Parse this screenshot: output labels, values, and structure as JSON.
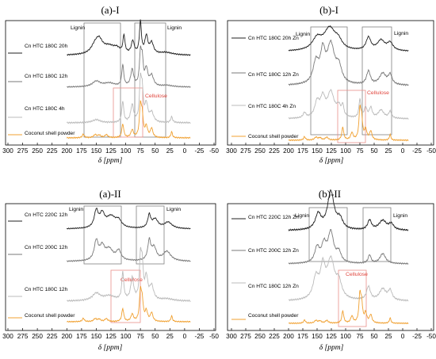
{
  "chart_data": [
    {
      "type": "line",
      "title": "(a)-I",
      "xlabel": "δ [ppm]",
      "xlim": [
        300,
        -50
      ],
      "x_ticks": [
        "300",
        "275",
        "250",
        "225",
        "200",
        "175",
        "150",
        "125",
        "100",
        "75",
        "50",
        "25",
        "0",
        "-25",
        "-50"
      ],
      "regions": [
        {
          "label": "Lignin",
          "from": 160,
          "to": 100,
          "color": "#808080"
        },
        {
          "label": "Lignin",
          "from": 68,
          "to": 10,
          "color": "#808080"
        },
        {
          "label": "Cellulose",
          "from": 112,
          "to": 58,
          "color": "#e8908a"
        }
      ],
      "series": [
        {
          "name": "Cn HTC 180C 20h",
          "color": "#222222",
          "peaks": [
            [
              152,
              0.25,
              8
            ],
            [
              145,
              0.35,
              7
            ],
            [
              128,
              0.25,
              14
            ],
            [
              115,
              0.12,
              6
            ],
            [
              103,
              0.55,
              2
            ],
            [
              88,
              0.4,
              3
            ],
            [
              75,
              1.0,
              2
            ],
            [
              65,
              0.55,
              3
            ],
            [
              56,
              0.35,
              4
            ],
            [
              32,
              0.08,
              15
            ]
          ]
        },
        {
          "name": "Cn HTC 180C 12h",
          "color": "#7a7a7a",
          "peaks": [
            [
              150,
              0.18,
              8
            ],
            [
              128,
              0.12,
              12
            ],
            [
              105,
              0.7,
              2
            ],
            [
              89,
              0.55,
              3
            ],
            [
              75,
              1.0,
              2
            ],
            [
              72,
              0.8,
              2
            ],
            [
              65,
              0.55,
              3
            ],
            [
              56,
              0.35,
              4
            ],
            [
              30,
              0.05,
              12
            ]
          ]
        },
        {
          "name": "Cn HTC 180C 4h",
          "color": "#bbbbbb",
          "peaks": [
            [
              150,
              0.08,
              8
            ],
            [
              105,
              0.55,
              2
            ],
            [
              89,
              0.45,
              3
            ],
            [
              75,
              1.0,
              2
            ],
            [
              72,
              0.75,
              2
            ],
            [
              65,
              0.45,
              3
            ],
            [
              56,
              0.25,
              4
            ],
            [
              22,
              0.15,
              2
            ]
          ]
        },
        {
          "name": "Coconut shell powder",
          "color": "#f0a030",
          "peaks": [
            [
              172,
              0.12,
              2
            ],
            [
              152,
              0.1,
              3
            ],
            [
              145,
              0.08,
              3
            ],
            [
              133,
              0.1,
              3
            ],
            [
              105,
              0.45,
              2
            ],
            [
              89,
              0.25,
              2.5
            ],
            [
              75,
              1.0,
              2
            ],
            [
              72,
              0.65,
              2
            ],
            [
              65,
              0.35,
              2.5
            ],
            [
              56,
              0.3,
              2.5
            ],
            [
              22,
              0.2,
              1.6
            ]
          ]
        }
      ]
    },
    {
      "type": "line",
      "title": "(b)-I",
      "xlabel": "δ [ppm]",
      "xlim": [
        300,
        -50
      ],
      "x_ticks": [
        "300",
        "275",
        "250",
        "225",
        "200",
        "175",
        "150",
        "125",
        "100",
        "75",
        "50",
        "25",
        "0",
        "-25",
        "-50"
      ],
      "regions": [
        {
          "label": "Lignin",
          "from": 160,
          "to": 100,
          "color": "#808080"
        },
        {
          "label": "Lignin",
          "from": 68,
          "to": 10,
          "color": "#808080"
        },
        {
          "label": "Cellulose",
          "from": 112,
          "to": 58,
          "color": "#e8908a"
        }
      ],
      "series": [
        {
          "name": "Cn HTC 180C 20h Zn",
          "color": "#222222",
          "peaks": [
            [
              150,
              0.45,
              10
            ],
            [
              128,
              0.85,
              12
            ],
            [
              113,
              0.3,
              8
            ],
            [
              60,
              0.5,
              5
            ],
            [
              38,
              0.4,
              8
            ],
            [
              22,
              0.3,
              6
            ]
          ]
        },
        {
          "name": "Cn HTC 180C 12h Zn",
          "color": "#7a7a7a",
          "peaks": [
            [
              152,
              0.55,
              6
            ],
            [
              140,
              0.75,
              5
            ],
            [
              126,
              1.0,
              8
            ],
            [
              112,
              0.4,
              6
            ],
            [
              60,
              0.35,
              4
            ],
            [
              35,
              0.3,
              7
            ],
            [
              22,
              0.25,
              4
            ]
          ]
        },
        {
          "name": "Cn HTC 180C 4h Zn",
          "color": "#bbbbbb",
          "peaks": [
            [
              172,
              0.15,
              3
            ],
            [
              150,
              0.45,
              5
            ],
            [
              140,
              0.55,
              5
            ],
            [
              126,
              0.75,
              7
            ],
            [
              112,
              0.3,
              5
            ],
            [
              105,
              0.3,
              2
            ],
            [
              75,
              0.55,
              2
            ],
            [
              65,
              0.3,
              3
            ],
            [
              56,
              0.3,
              3
            ],
            [
              38,
              0.25,
              6
            ],
            [
              22,
              0.2,
              3
            ]
          ]
        },
        {
          "name": "Coconut shell powder",
          "color": "#f0a030",
          "peaks": [
            [
              172,
              0.12,
              2
            ],
            [
              152,
              0.1,
              3
            ],
            [
              145,
              0.08,
              3
            ],
            [
              133,
              0.1,
              3
            ],
            [
              105,
              0.45,
              2
            ],
            [
              89,
              0.25,
              2.5
            ],
            [
              75,
              1.0,
              2
            ],
            [
              72,
              0.65,
              2
            ],
            [
              65,
              0.35,
              2.5
            ],
            [
              56,
              0.3,
              2.5
            ],
            [
              22,
              0.2,
              1.6
            ]
          ]
        }
      ]
    },
    {
      "type": "line",
      "title": "(a)-II",
      "xlabel": "δ [ppm]",
      "xlim": [
        300,
        -50
      ],
      "x_ticks": [
        "300",
        "275",
        "250",
        "225",
        "200",
        "175",
        "150",
        "125",
        "100",
        "75",
        "50",
        "25",
        "0",
        "-25",
        "-50"
      ],
      "regions": [
        {
          "label": "Lignin",
          "from": 160,
          "to": 100,
          "color": "#808080"
        },
        {
          "label": "Lignin",
          "from": 68,
          "to": 10,
          "color": "#808080"
        },
        {
          "label": "Cellulose",
          "from": 112,
          "to": 58,
          "color": "#e8908a"
        }
      ],
      "series": [
        {
          "name": "Cn HTC 220C 12h",
          "color": "#222222",
          "peaks": [
            [
              150,
              0.65,
              4
            ],
            [
              140,
              0.5,
              5
            ],
            [
              125,
              0.45,
              10
            ],
            [
              112,
              0.25,
              6
            ],
            [
              60,
              0.5,
              3
            ],
            [
              50,
              0.35,
              6
            ],
            [
              28,
              0.25,
              8
            ]
          ]
        },
        {
          "name": "Cn HTC 200C 12h",
          "color": "#7a7a7a",
          "peaks": [
            [
              150,
              0.6,
              4
            ],
            [
              140,
              0.4,
              5
            ],
            [
              128,
              0.35,
              8
            ],
            [
              112,
              0.3,
              5
            ],
            [
              60,
              0.6,
              3
            ],
            [
              52,
              0.4,
              5
            ],
            [
              30,
              0.3,
              8
            ]
          ]
        },
        {
          "name": "Cn HTC 180C 12h",
          "color": "#bbbbbb",
          "peaks": [
            [
              150,
              0.18,
              8
            ],
            [
              128,
              0.12,
              12
            ],
            [
              105,
              0.7,
              2
            ],
            [
              89,
              0.55,
              3
            ],
            [
              75,
              1.0,
              2
            ],
            [
              72,
              0.8,
              2
            ],
            [
              65,
              0.55,
              3
            ],
            [
              56,
              0.35,
              4
            ],
            [
              30,
              0.05,
              12
            ]
          ]
        },
        {
          "name": "Coconut shell powder",
          "color": "#f0a030",
          "peaks": [
            [
              172,
              0.12,
              2
            ],
            [
              152,
              0.1,
              3
            ],
            [
              145,
              0.08,
              3
            ],
            [
              133,
              0.1,
              3
            ],
            [
              105,
              0.45,
              2
            ],
            [
              89,
              0.25,
              2.5
            ],
            [
              75,
              1.0,
              2
            ],
            [
              72,
              0.65,
              2
            ],
            [
              65,
              0.35,
              2.5
            ],
            [
              56,
              0.3,
              2.5
            ],
            [
              22,
              0.2,
              1.6
            ]
          ]
        }
      ]
    },
    {
      "type": "line",
      "title": "(b)-II",
      "xlabel": "δ [ppm]",
      "xlim": [
        300,
        -50
      ],
      "x_ticks": [
        "300",
        "275",
        "250",
        "225",
        "200",
        "175",
        "150",
        "125",
        "100",
        "75",
        "50",
        "25",
        "0",
        "-25",
        "-50"
      ],
      "regions": [
        {
          "label": "Lignin",
          "from": 160,
          "to": 100,
          "color": "#808080"
        },
        {
          "label": "Lignin",
          "from": 68,
          "to": 10,
          "color": "#808080"
        },
        {
          "label": "Cellulose",
          "from": 112,
          "to": 58,
          "color": "#e8908a"
        }
      ],
      "series": [
        {
          "name": "Cn HTC 220C 12h Zn",
          "color": "#222222",
          "peaks": [
            [
              148,
              0.4,
              6
            ],
            [
              126,
              1.0,
              7
            ],
            [
              110,
              0.25,
              6
            ],
            [
              58,
              0.25,
              4
            ],
            [
              35,
              0.25,
              8
            ],
            [
              20,
              0.15,
              5
            ]
          ]
        },
        {
          "name": "Cn HTC 200C 12h Zn",
          "color": "#7a7a7a",
          "peaks": [
            [
              150,
              0.45,
              5
            ],
            [
              138,
              0.5,
              5
            ],
            [
              126,
              0.9,
              6
            ],
            [
              112,
              0.3,
              5
            ],
            [
              58,
              0.25,
              3
            ],
            [
              35,
              0.3,
              6
            ]
          ]
        },
        {
          "name": "Cn HTC 180C 12h Zn",
          "color": "#bbbbbb",
          "peaks": [
            [
              152,
              0.55,
              6
            ],
            [
              140,
              0.75,
              5
            ],
            [
              126,
              1.0,
              8
            ],
            [
              112,
              0.4,
              6
            ],
            [
              60,
              0.35,
              4
            ],
            [
              35,
              0.3,
              7
            ],
            [
              22,
              0.25,
              4
            ]
          ]
        },
        {
          "name": "Coconut shell powder",
          "color": "#f0a030",
          "peaks": [
            [
              172,
              0.12,
              2
            ],
            [
              152,
              0.1,
              3
            ],
            [
              145,
              0.08,
              3
            ],
            [
              133,
              0.1,
              3
            ],
            [
              105,
              0.45,
              2
            ],
            [
              89,
              0.25,
              2.5
            ],
            [
              75,
              1.0,
              2
            ],
            [
              72,
              0.65,
              2
            ],
            [
              65,
              0.35,
              2.5
            ],
            [
              56,
              0.3,
              2.5
            ],
            [
              22,
              0.2,
              1.6
            ]
          ]
        }
      ]
    }
  ]
}
